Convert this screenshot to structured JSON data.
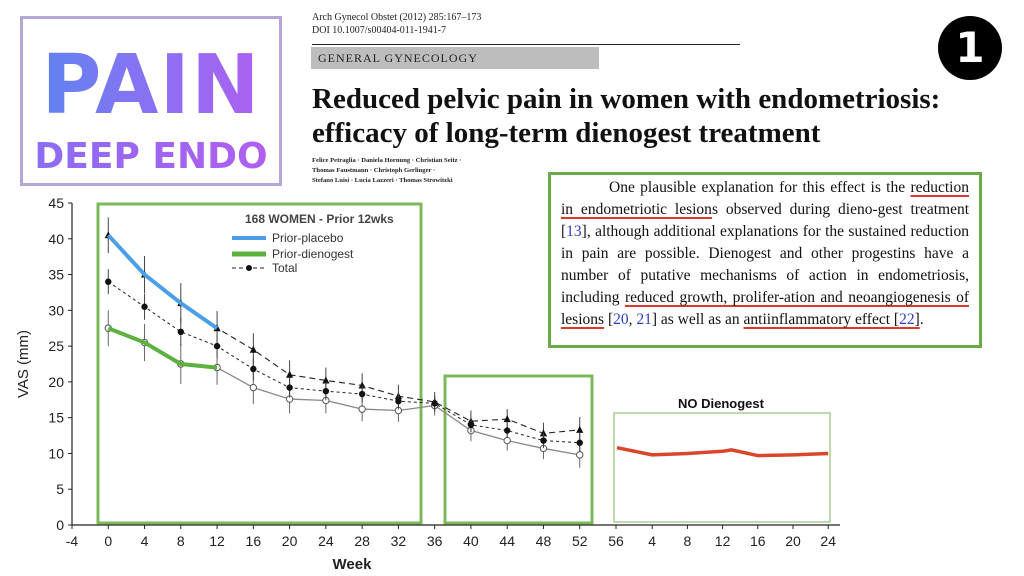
{
  "badge": {
    "title": "PAIN",
    "subtitle": "DEEP ENDO"
  },
  "paper": {
    "journal": "Arch Gynecol Obstet (2012) 285:167–173",
    "doi": "DOI 10.1007/s00404-011-1941-7",
    "section": "GENERAL GYNECOLOGY",
    "title_line1": "Reduced pelvic pain in women with endometriosis:",
    "title_line2": "efficacy of long-term dienogest treatment",
    "authors_line1": "Felice Petraglia · Daniela Hornung · Christian Seitz ·",
    "authors_line2": "Thomas Faustmann · Christoph Gerlinger ·",
    "authors_line3": "Stefano Luisi · Lucia Lazzeri · Thomas Strowitzki"
  },
  "slide_number": "1",
  "quote": {
    "t1": "One plausible explanation for this effect is the ",
    "u1": "reduction in endometriotic lesion",
    "t2": "s observed during dieno-gest treatment [",
    "r1": "13",
    "t3": "], although additional explanations for the sustained reduction in pain are possible. Dienogest and other progestins have a number of putative mechanisms of action in endometriosis, including ",
    "u2": "reduced growth, prolifer-ation and neoangiogenesis of lesions",
    "t4": " [",
    "r2": "20",
    "t5": ", ",
    "r3": "21",
    "t6": "] as well as an ",
    "u3": "antiinflammatory effect [",
    "r4": "22",
    "u4": "]",
    "t7": "."
  },
  "chart_data": [
    {
      "type": "line",
      "xlabel": "Week",
      "ylabel": "VAS (mm)",
      "ylim": [
        0,
        45
      ],
      "xlim": [
        -4,
        56
      ],
      "x_ticks": [
        -4,
        0,
        4,
        8,
        12,
        16,
        20,
        24,
        28,
        32,
        36,
        40,
        44,
        48,
        52,
        56
      ],
      "y_ticks": [
        0,
        5,
        10,
        15,
        20,
        25,
        30,
        35,
        40,
        45
      ],
      "legend_title": "168 WOMEN - Prior 12wks",
      "legend_position": "top",
      "series": [
        {
          "name": "Prior-placebo",
          "color": "#4a9fe8",
          "x": [
            0,
            4,
            8,
            12
          ],
          "y": [
            40.5,
            35,
            31,
            27.5
          ]
        },
        {
          "name": "Prior-dienogest",
          "color": "#5cb23f",
          "x": [
            0,
            4,
            8,
            12
          ],
          "y": [
            27.5,
            25.5,
            22.5,
            22
          ]
        },
        {
          "name": "Total",
          "color": "#222222",
          "x": [
            0,
            4,
            8,
            12,
            16,
            20,
            24,
            28,
            32,
            36,
            40,
            44,
            48,
            52
          ],
          "y": [
            34,
            30.5,
            27,
            25,
            21.8,
            19.2,
            18.7,
            18.3,
            17.3,
            17,
            14,
            13.2,
            11.8,
            11.5
          ]
        },
        {
          "name": "",
          "color": "#222222",
          "x": [
            0,
            4,
            8,
            12,
            16,
            20,
            24,
            28,
            32,
            36,
            40,
            44,
            48,
            52
          ],
          "y": [
            40.5,
            35,
            31,
            27.5,
            24.5,
            21,
            20.2,
            19.5,
            18,
            17.2,
            14.5,
            14.8,
            12.8,
            13.3
          ]
        },
        {
          "name": "",
          "color": "#888888",
          "x": [
            0,
            4,
            8,
            12,
            16,
            20,
            24,
            28,
            32,
            36,
            40,
            44,
            48,
            52
          ],
          "y": [
            27.5,
            25.5,
            22.5,
            22,
            19.2,
            17.6,
            17.4,
            16.2,
            16,
            16.7,
            13.2,
            11.8,
            10.7,
            9.8
          ]
        }
      ]
    },
    {
      "type": "line",
      "title": "NO Dienogest",
      "x_ticks": [
        4,
        8,
        12,
        16,
        20,
        24
      ],
      "xlim": [
        0,
        25
      ],
      "ylim": [
        0,
        45
      ],
      "series": [
        {
          "name": "",
          "color": "#d9472b",
          "x": [
            0,
            4,
            8,
            12,
            13,
            16,
            20,
            24
          ],
          "y": [
            10.8,
            9.8,
            10,
            10.3,
            10.5,
            9.7,
            9.8,
            10
          ]
        }
      ]
    }
  ]
}
